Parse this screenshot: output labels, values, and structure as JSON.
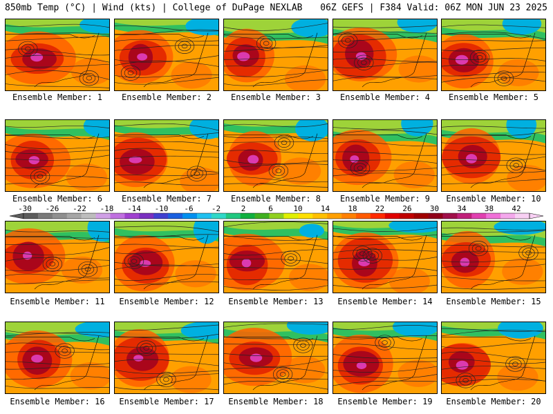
{
  "header": {
    "left": "850mb Temp (°C) | Wind (kts) | College of DuPage NEXLAB",
    "right": "06Z GEFS | F384 Valid: 06Z MON JUN 23 2025"
  },
  "panels": [
    {
      "label": "Ensemble Member: 1"
    },
    {
      "label": "Ensemble Member: 2"
    },
    {
      "label": "Ensemble Member: 3"
    },
    {
      "label": "Ensemble Member: 4"
    },
    {
      "label": "Ensemble Member: 5"
    },
    {
      "label": "Ensemble Member: 6"
    },
    {
      "label": "Ensemble Member: 7"
    },
    {
      "label": "Ensemble Member: 8"
    },
    {
      "label": "Ensemble Member: 9"
    },
    {
      "label": "Ensemble Member: 10"
    },
    {
      "label": "Ensemble Member: 11"
    },
    {
      "label": "Ensemble Member: 12"
    },
    {
      "label": "Ensemble Member: 13"
    },
    {
      "label": "Ensemble Member: 14"
    },
    {
      "label": "Ensemble Member: 15"
    },
    {
      "label": "Ensemble Member: 16"
    },
    {
      "label": "Ensemble Member: 17"
    },
    {
      "label": "Ensemble Member: 18"
    },
    {
      "label": "Ensemble Member: 19"
    },
    {
      "label": "Ensemble Member: 20"
    }
  ],
  "colorbar": {
    "labels": [
      "-30",
      "-26",
      "-22",
      "-18",
      "-14",
      "-10",
      "-6",
      "-2",
      "2",
      "6",
      "10",
      "14",
      "18",
      "22",
      "26",
      "30",
      "34",
      "38",
      "42"
    ],
    "colors": [
      "#5c5c5c",
      "#7a7a7a",
      "#8f8f8f",
      "#a6a6a6",
      "#bdbdbd",
      "#d0a0e6",
      "#c070e0",
      "#a040d0",
      "#7a30c0",
      "#4040d0",
      "#1a60e0",
      "#0090f0",
      "#20c0f0",
      "#30d8c8",
      "#20c880",
      "#10b040",
      "#40b020",
      "#90d020",
      "#e0f000",
      "#ffe000",
      "#ffc000",
      "#ffa000",
      "#ff8000",
      "#ff5a00",
      "#ff2a00",
      "#e00000",
      "#c00000",
      "#a00000",
      "#900018",
      "#a0104a",
      "#c0207a",
      "#e040b0",
      "#f070d8",
      "#f4a8ec",
      "#f8d0f4"
    ]
  },
  "palette": {
    "cold": "#00b0e0",
    "cool": "#30c060",
    "mild": "#e8e020",
    "warm": "#ffa000",
    "hot": "#ff6000",
    "hotter": "#e02000",
    "hottest": "#a00020",
    "extreme": "#e040c0"
  }
}
